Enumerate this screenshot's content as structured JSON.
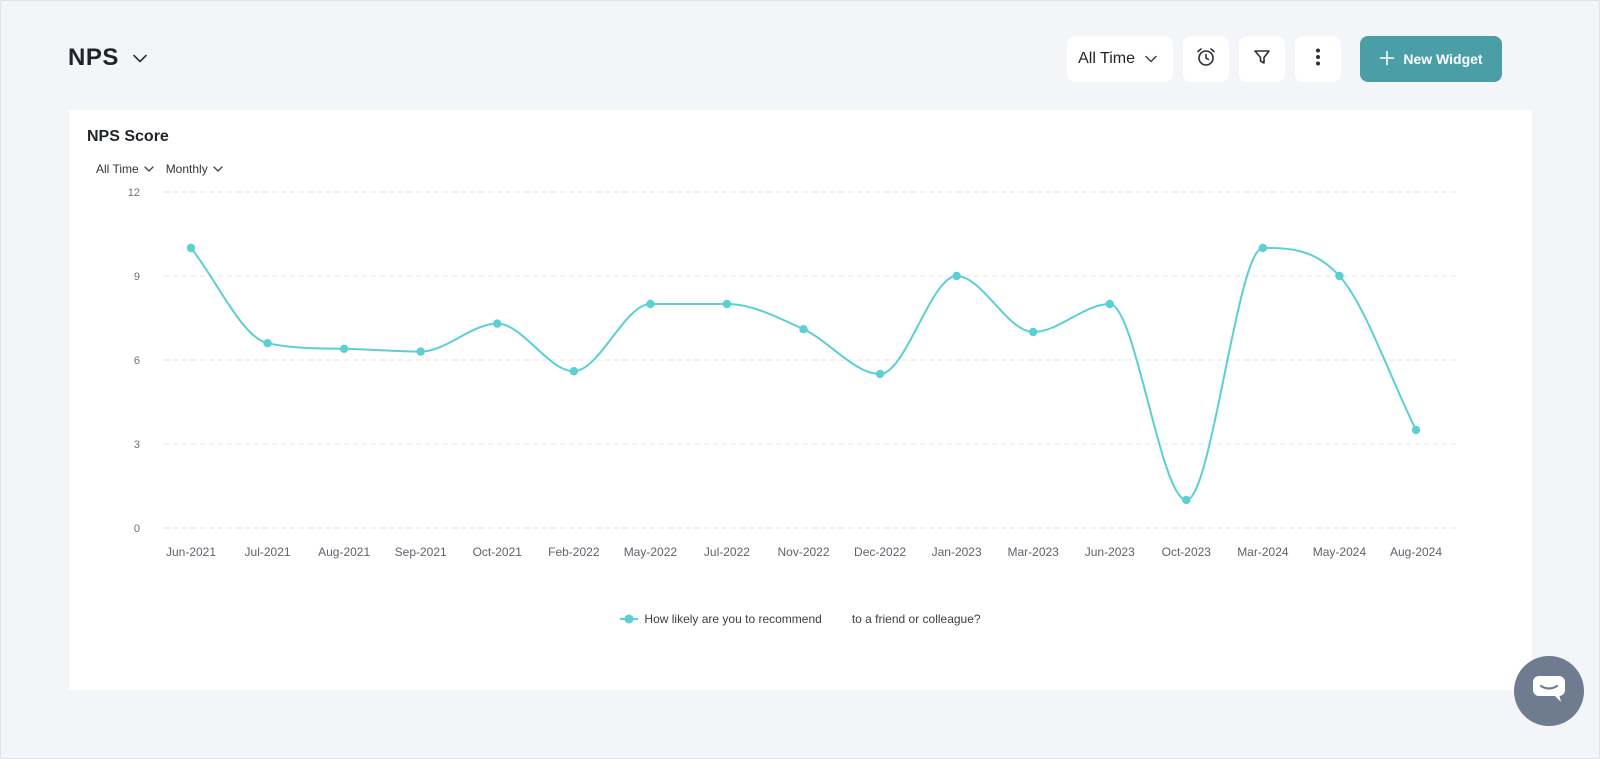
{
  "header": {
    "title": "NPS",
    "time_range": "All Time",
    "new_widget_label": "New Widget",
    "icons": [
      "chevron-down-icon",
      "alarm-clock-icon",
      "filter-icon",
      "more-vertical-icon",
      "plus-icon"
    ]
  },
  "widget": {
    "title": "NPS Score",
    "range_filter": "All Time",
    "interval_filter": "Monthly"
  },
  "colors": {
    "accent": "#4a9fa7",
    "series": "#5ccfd3",
    "background": "#f3f5f8",
    "chat_button": "#6f7b8f"
  },
  "chart_data": {
    "type": "line",
    "categories": [
      "Jun-2021",
      "Jul-2021",
      "Aug-2021",
      "Sep-2021",
      "Oct-2021",
      "Feb-2022",
      "May-2022",
      "Jul-2022",
      "Nov-2022",
      "Dec-2022",
      "Jan-2023",
      "Mar-2023",
      "Jun-2023",
      "Oct-2023",
      "Mar-2024",
      "May-2024",
      "Aug-2024"
    ],
    "series": [
      {
        "name": "How likely are you to recommend         to a friend or colleague?",
        "values": [
          10,
          6.6,
          6.4,
          6.3,
          7.3,
          5.6,
          8,
          8,
          7.1,
          5.5,
          9,
          7,
          8,
          1,
          10,
          9,
          3.5
        ]
      }
    ],
    "ylim": [
      0,
      12
    ],
    "yticks": [
      "0",
      "3",
      "6",
      "9",
      "12"
    ],
    "grid": true,
    "smooth": true,
    "legend_position": "bottom-center"
  },
  "chat": {
    "icon": "chat-bubble-icon"
  }
}
